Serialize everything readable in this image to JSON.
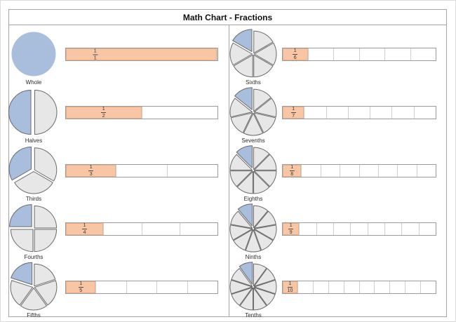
{
  "title": "Math Chart - Fractions",
  "rows": [
    {
      "label": "Whole",
      "numerator": "1",
      "denominator": "1",
      "parts": 1,
      "column": "left"
    },
    {
      "label": "Halves",
      "numerator": "1",
      "denominator": "2",
      "parts": 2,
      "column": "left"
    },
    {
      "label": "Thirds",
      "numerator": "1",
      "denominator": "3",
      "parts": 3,
      "column": "left"
    },
    {
      "label": "Fourths",
      "numerator": "1",
      "denominator": "4",
      "parts": 4,
      "column": "left"
    },
    {
      "label": "Fifths",
      "numerator": "1",
      "denominator": "5",
      "parts": 5,
      "column": "left"
    },
    {
      "label": "Sixths",
      "numerator": "1",
      "denominator": "6",
      "parts": 6,
      "column": "right"
    },
    {
      "label": "Sevenths",
      "numerator": "1",
      "denominator": "7",
      "parts": 7,
      "column": "right"
    },
    {
      "label": "Eighths",
      "numerator": "1",
      "denominator": "8",
      "parts": 8,
      "column": "right"
    },
    {
      "label": "Ninths",
      "numerator": "1",
      "denominator": "9",
      "parts": 9,
      "column": "right"
    },
    {
      "label": "Tenths",
      "numerator": "1",
      "denominator": "10",
      "parts": 10,
      "column": "right"
    }
  ],
  "colors": {
    "highlight_blue": "#a9bedd",
    "slice_gray": "#e7e7e7",
    "slice_stroke": "#6a6a6a",
    "strip_fill": "#f8c6a4",
    "strip_border": "#9b9b9b",
    "cell_divider": "#cfcfcf",
    "frame_border": "#a5a5a5"
  },
  "chart_data": {
    "type": "pie",
    "title": "Math Chart - Fractions",
    "categories": [
      "Whole",
      "Halves",
      "Thirds",
      "Fourths",
      "Fifths",
      "Sixths",
      "Sevenths",
      "Eighths",
      "Ninths",
      "Tenths"
    ],
    "fractions": [
      "1/1",
      "1/2",
      "1/3",
      "1/4",
      "1/5",
      "1/6",
      "1/7",
      "1/8",
      "1/9",
      "1/10"
    ],
    "parts": [
      1,
      2,
      3,
      4,
      5,
      6,
      7,
      8,
      9,
      10
    ],
    "values": [
      1,
      0.5,
      0.333,
      0.25,
      0.2,
      0.167,
      0.143,
      0.125,
      0.111,
      0.1
    ],
    "layout": "two-column grid; each row pairs an exploded pie (first 1/n slice highlighted blue, starting at 12 o'clock sweeping counterclockwise) with a 1-by-n fraction strip whose first cell is shaded and labeled 1/n",
    "legend": false
  }
}
